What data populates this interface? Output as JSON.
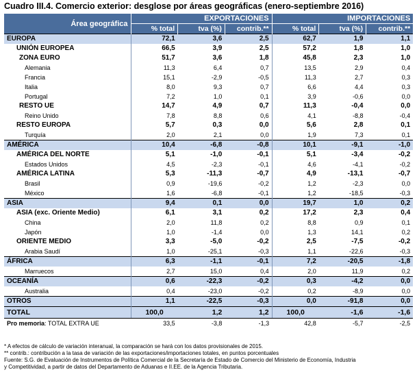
{
  "title": "Cuadro III.4. Comercio exterior: desglose por áreas geográficas (enero-septiembre 2016)",
  "header": {
    "area_label": "Área geográfica",
    "export_label": "EXPORTACIONES",
    "import_label": "IMPORTACIONES",
    "columns": [
      "% total",
      "tva (%)",
      "contrib.**",
      "% total",
      "tva (%)",
      "contrib.**"
    ]
  },
  "rows": [
    {
      "label": "EUROPA",
      "level": 0,
      "values": [
        "72,1",
        "3,6",
        "2,5",
        "62,7",
        "1,9",
        "1,1"
      ]
    },
    {
      "label": "UNIÓN EUROPEA",
      "level": 1,
      "values": [
        "66,5",
        "3,9",
        "2,5",
        "57,2",
        "1,8",
        "1,0"
      ]
    },
    {
      "label": "ZONA EURO",
      "level": 2,
      "values": [
        "51,7",
        "3,6",
        "1,8",
        "45,8",
        "2,3",
        "1,0"
      ]
    },
    {
      "label": "Alemania",
      "level": 3,
      "values": [
        "11,3",
        "6,4",
        "0,7",
        "13,5",
        "2,9",
        "0,4"
      ]
    },
    {
      "label": "Francia",
      "level": 3,
      "values": [
        "15,1",
        "-2,9",
        "-0,5",
        "11,3",
        "2,7",
        "0,3"
      ]
    },
    {
      "label": "Italia",
      "level": 3,
      "values": [
        "8,0",
        "9,3",
        "0,7",
        "6,6",
        "4,4",
        "0,3"
      ]
    },
    {
      "label": "Portugal",
      "level": 3,
      "values": [
        "7,2",
        "1,0",
        "0,1",
        "3,9",
        "-0,6",
        "0,0"
      ]
    },
    {
      "label": "RESTO UE",
      "level": 2,
      "values": [
        "14,7",
        "4,9",
        "0,7",
        "11,3",
        "-0,4",
        "0,0"
      ]
    },
    {
      "label": "Reino Unido",
      "level": 3,
      "values": [
        "7,8",
        "8,8",
        "0,6",
        "4,1",
        "-8,8",
        "-0,4"
      ]
    },
    {
      "label": "RESTO EUROPA",
      "level": 1,
      "values": [
        "5,7",
        "0,3",
        "0,0",
        "5,6",
        "2,8",
        "0,1"
      ]
    },
    {
      "label": "Turquía",
      "level": 3,
      "values": [
        "2,0",
        "2,1",
        "0,0",
        "1,9",
        "7,3",
        "0,1"
      ]
    },
    {
      "label": "AMÉRICA",
      "level": 0,
      "values": [
        "10,4",
        "-6,8",
        "-0,8",
        "10,1",
        "-9,1",
        "-1,0"
      ]
    },
    {
      "label": "AMÉRICA DEL NORTE",
      "level": 1,
      "values": [
        "5,1",
        "-1,0",
        "-0,1",
        "5,1",
        "-3,4",
        "-0,2"
      ]
    },
    {
      "label": "Estados Unidos",
      "level": 3,
      "values": [
        "4,5",
        "-2,3",
        "-0,1",
        "4,6",
        "-4,1",
        "-0,2"
      ]
    },
    {
      "label": "AMÉRICA LATINA",
      "level": 1,
      "values": [
        "5,3",
        "-11,3",
        "-0,7",
        "4,9",
        "-13,1",
        "-0,7"
      ]
    },
    {
      "label": "Brasil",
      "level": 3,
      "values": [
        "0,9",
        "-19,6",
        "-0,2",
        "1,2",
        "-2,3",
        "0,0"
      ]
    },
    {
      "label": "México",
      "level": 3,
      "values": [
        "1,6",
        "-6,8",
        "-0,1",
        "1,2",
        "-18,5",
        "-0,3"
      ]
    },
    {
      "label": "ASIA",
      "level": 0,
      "values": [
        "9,4",
        "0,1",
        "0,0",
        "19,7",
        "1,0",
        "0,2"
      ]
    },
    {
      "label": "ASIA (exc. Oriente Medio)",
      "level": 1,
      "values": [
        "6,1",
        "3,1",
        "0,2",
        "17,2",
        "2,3",
        "0,4"
      ]
    },
    {
      "label": "China",
      "level": 3,
      "values": [
        "2,0",
        "11,8",
        "0,2",
        "8,8",
        "0,9",
        "0,1"
      ]
    },
    {
      "label": "Japón",
      "level": 3,
      "values": [
        "1,0",
        "-1,4",
        "0,0",
        "1,3",
        "14,1",
        "0,2"
      ]
    },
    {
      "label": "ORIENTE MEDIO",
      "level": 1,
      "values": [
        "3,3",
        "-5,0",
        "-0,2",
        "2,5",
        "-7,5",
        "-0,2"
      ]
    },
    {
      "label": "Arabia Saudí",
      "level": 3,
      "values": [
        "1,0",
        "-25,1",
        "-0,3",
        "1,1",
        "-22,6",
        "-0,3"
      ]
    },
    {
      "label": "ÁFRICA",
      "level": 0,
      "values": [
        "6,3",
        "-1,1",
        "-0,1",
        "7,2",
        "-20,5",
        "-1,8"
      ]
    },
    {
      "label": "Marruecos",
      "level": 3,
      "values": [
        "2,7",
        "15,0",
        "0,4",
        "2,0",
        "11,9",
        "0,2"
      ]
    },
    {
      "label": "OCEANÍA",
      "level": 0,
      "values": [
        "0,6",
        "-22,3",
        "-0,2",
        "0,3",
        "-4,2",
        "0,0"
      ]
    },
    {
      "label": "Australia",
      "level": 3,
      "values": [
        "0,4",
        "-23,0",
        "-0,2",
        "0,2",
        "-8,9",
        "0,0"
      ]
    },
    {
      "label": "OTROS",
      "level": 0,
      "values": [
        "1,1",
        "-22,5",
        "-0,3",
        "0,0",
        "-91,8",
        "0,0"
      ]
    }
  ],
  "total_row": {
    "label": "TOTAL",
    "values": [
      "100,0",
      "1,2",
      "1,2",
      "100,0",
      "-1,6",
      "-1,6"
    ]
  },
  "memo_row": {
    "label_bold": "Pro memoria",
    "label_rest": ": TOTAL EXTRA UE",
    "values": [
      "33,5",
      "-3,8",
      "-1,3",
      "42,8",
      "-5,7",
      "-2,5"
    ]
  },
  "notes": [
    "* A efectos de cálculo de variación interanual, la comparación se hará con los datos provisionales de 2015.",
    "** contrib.: contribución a la tasa de variación de las exportaciones/importaciones totales, en puntos porcentuales",
    "Fuente: S.G. de Evaluación de Instrumentos de Política Comercial de la Secretaría de Estado de Comercio del Ministerio de Economía, Industria",
    "y Competitividad, a partir de datos del Departamento de Aduanas e II.EE. de la Agencia Tributaria."
  ],
  "colors": {
    "header_bg": "#4a6d9c",
    "region_bg": "#c9d8ee"
  }
}
